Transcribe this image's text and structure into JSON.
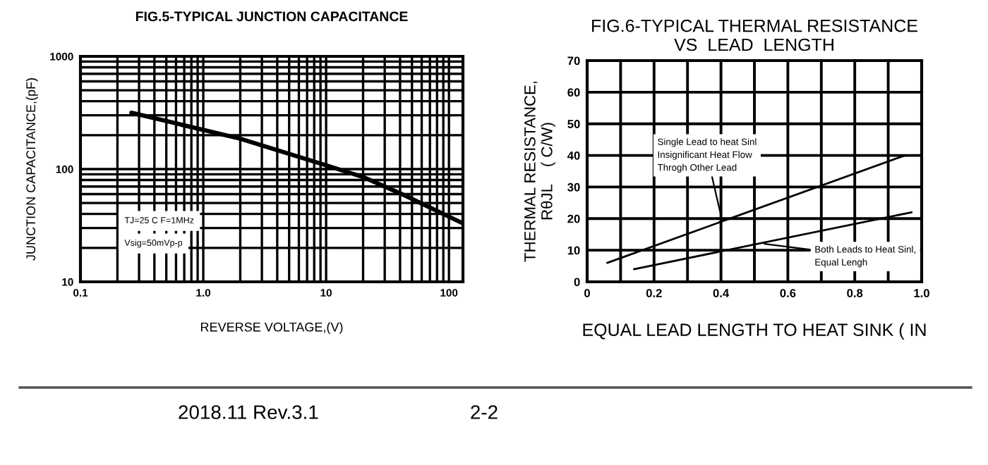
{
  "chart_data": [
    {
      "type": "line",
      "title": "FIG.5-TYPICAL JUNCTION CAPACITANCE",
      "xlabel": "REVERSE VOLTAGE,(V)",
      "ylabel": "JUNCTION CAPACITANCE,(pF)",
      "log": "xy",
      "grid": true,
      "xlim": [
        0.1,
        130
      ],
      "ylim": [
        10,
        1000
      ],
      "xticks": [
        0.1,
        {
          "value": 1,
          "label": "1.0"
        },
        10,
        100
      ],
      "yticks": [
        10,
        100,
        1000
      ],
      "series": [
        {
          "color": "#000000",
          "x": [
            0.26,
            2,
            10,
            20,
            40,
            130
          ],
          "values": [
            316,
            186,
            108,
            85,
            61,
            33
          ]
        }
      ],
      "annotations": [
        "TJ=25 C F=1MHz",
        "Vsig=50mVp-p"
      ]
    },
    {
      "type": "line",
      "title": "FIG.6-TYPICAL THERMAL RESISTANCE\nVS  LEAD  LENGTH",
      "xlabel": "EQUAL LEAD LENGTH TO HEAT SINK ( IN",
      "ylabel": "THERMAL RESISTANCE,\nRθJL    ( C/W)",
      "grid": true,
      "xlim": [
        0,
        1.0
      ],
      "ylim": [
        0,
        70
      ],
      "xticks": [
        0,
        {
          "value": 0.1,
          "label": null
        },
        0.2,
        {
          "value": 0.3,
          "label": null
        },
        0.4,
        {
          "value": 0.5,
          "label": null
        },
        0.6,
        {
          "value": 0.7,
          "label": null
        },
        0.8,
        {
          "value": 0.9,
          "label": null
        },
        {
          "value": 1.0,
          "label": "1.0"
        }
      ],
      "yticks": [
        0,
        10,
        20,
        30,
        40,
        50,
        60,
        70
      ],
      "series": [
        {
          "color": "#000000",
          "x": [
            0.06,
            0.95
          ],
          "values": [
            6,
            40
          ]
        },
        {
          "color": "#000000",
          "x": [
            0.14,
            0.97
          ],
          "values": [
            4,
            22
          ]
        }
      ],
      "annotations": [
        {
          "text": "Single Lead to heat Sinl\nInsignificant Heat Flow\nThrogh Other Lead",
          "x": 0.4,
          "y": 21
        },
        {
          "text": "Both Leads to Heat Sinl,\nEqual Lengh",
          "x": 0.53,
          "y": 12
        },
        "2018.11 Rev.3.1",
        "2-2"
      ]
    }
  ]
}
